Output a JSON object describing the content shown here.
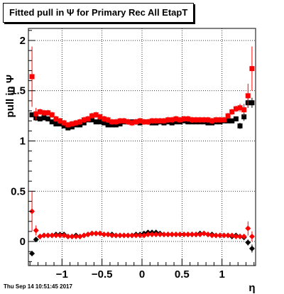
{
  "title": "Fitted pull in  Ψ  for Primary Rec All EtapT",
  "timestamp": "Thu Sep 14 10:51:45 2017",
  "chart_data": {
    "type": "scatter",
    "xlabel": "η",
    "ylabel": "pull in  Ψ",
    "xlim": [
      -1.42,
      1.42
    ],
    "ylim": [
      -0.24,
      2.12
    ],
    "x_ticks": [
      -1,
      -0.5,
      0,
      0.5,
      1
    ],
    "x_tick_labels": [
      "−1",
      "−0.5",
      "0",
      "0.5",
      "1"
    ],
    "y_ticks": [
      0,
      0.5,
      1,
      1.5,
      2
    ],
    "y_tick_labels": [
      "0",
      "0.5",
      "1",
      "1.5",
      "2"
    ],
    "grid": true,
    "x": [
      -1.375,
      -1.325,
      -1.275,
      -1.225,
      -1.175,
      -1.125,
      -1.075,
      -1.025,
      -0.975,
      -0.925,
      -0.875,
      -0.825,
      -0.775,
      -0.725,
      -0.675,
      -0.625,
      -0.575,
      -0.525,
      -0.475,
      -0.425,
      -0.375,
      -0.325,
      -0.275,
      -0.225,
      -0.175,
      -0.125,
      -0.075,
      -0.025,
      0.025,
      0.075,
      0.125,
      0.175,
      0.225,
      0.275,
      0.325,
      0.375,
      0.425,
      0.475,
      0.525,
      0.575,
      0.625,
      0.675,
      0.725,
      0.775,
      0.825,
      0.875,
      0.925,
      0.975,
      1.025,
      1.075,
      1.125,
      1.175,
      1.225,
      1.275,
      1.325,
      1.375
    ],
    "series": [
      {
        "color": "#000000",
        "marker": "square",
        "values": [
          1.26,
          1.23,
          1.22,
          1.23,
          1.22,
          1.19,
          1.17,
          1.17,
          1.15,
          1.13,
          1.14,
          1.16,
          1.16,
          1.18,
          1.21,
          1.21,
          1.19,
          1.19,
          1.18,
          1.16,
          1.16,
          1.16,
          1.17,
          1.19,
          1.19,
          1.19,
          1.19,
          1.18,
          1.19,
          1.19,
          1.18,
          1.18,
          1.19,
          1.18,
          1.19,
          1.18,
          1.19,
          1.19,
          1.2,
          1.19,
          1.19,
          1.19,
          1.19,
          1.19,
          1.18,
          1.18,
          1.19,
          1.19,
          1.2,
          1.2,
          1.2,
          1.22,
          1.15,
          1.24,
          1.38,
          1.38
        ],
        "errors": [
          0,
          0.03,
          0.02,
          0.02,
          0.02,
          0.02,
          0.02,
          0.02,
          0.02,
          0.02,
          0.02,
          0.02,
          0.02,
          0.02,
          0.02,
          0.02,
          0.02,
          0.02,
          0.02,
          0.02,
          0.02,
          0.02,
          0.02,
          0.02,
          0.02,
          0.02,
          0.02,
          0.02,
          0.02,
          0.02,
          0.02,
          0.02,
          0.02,
          0.02,
          0.02,
          0.02,
          0.02,
          0.02,
          0.02,
          0.02,
          0.02,
          0.02,
          0.02,
          0.02,
          0.02,
          0.02,
          0.02,
          0.02,
          0.02,
          0.02,
          0.02,
          0.02,
          0.03,
          0.04,
          0.05,
          0.05
        ]
      },
      {
        "color": "#ff0000",
        "marker": "square",
        "values": [
          1.64,
          1.27,
          1.29,
          1.28,
          1.28,
          1.26,
          1.22,
          1.2,
          1.18,
          1.16,
          1.17,
          1.18,
          1.19,
          1.21,
          1.22,
          1.25,
          1.26,
          1.24,
          1.22,
          1.21,
          1.19,
          1.19,
          1.2,
          1.2,
          1.19,
          1.18,
          1.19,
          1.2,
          1.19,
          1.19,
          1.2,
          1.2,
          1.2,
          1.2,
          1.21,
          1.21,
          1.22,
          1.21,
          1.22,
          1.22,
          1.21,
          1.21,
          1.21,
          1.21,
          1.21,
          1.2,
          1.21,
          1.21,
          1.21,
          1.25,
          1.29,
          1.32,
          1.33,
          1.31,
          1.45,
          1.72
        ],
        "errors": [
          0.3,
          0.06,
          0.03,
          0.03,
          0.03,
          0.03,
          0.03,
          0.03,
          0.03,
          0.03,
          0.03,
          0.03,
          0.03,
          0.03,
          0.03,
          0.03,
          0.03,
          0.03,
          0.03,
          0.03,
          0.03,
          0.03,
          0.03,
          0.03,
          0.03,
          0.03,
          0.03,
          0.03,
          0.03,
          0.03,
          0.03,
          0.03,
          0.03,
          0.03,
          0.03,
          0.03,
          0.03,
          0.03,
          0.03,
          0.03,
          0.03,
          0.03,
          0.03,
          0.03,
          0.03,
          0.03,
          0.03,
          0.03,
          0.03,
          0.03,
          0.03,
          0.03,
          0.04,
          0.06,
          0.12,
          0.22
        ]
      },
      {
        "color": "#000000",
        "marker": "diamond",
        "values": [
          -0.12,
          0.02,
          0.05,
          0.06,
          0.06,
          0.06,
          0.07,
          0.07,
          0.07,
          0.05,
          0.05,
          0.06,
          0.05,
          0.06,
          0.07,
          0.08,
          0.08,
          0.08,
          0.07,
          0.07,
          0.07,
          0.06,
          0.06,
          0.06,
          0.06,
          0.06,
          0.07,
          0.07,
          0.08,
          0.09,
          0.09,
          0.09,
          0.08,
          0.07,
          0.07,
          0.07,
          0.07,
          0.07,
          0.07,
          0.07,
          0.07,
          0.07,
          0.08,
          0.08,
          0.07,
          0.07,
          0.06,
          0.06,
          0.06,
          0.06,
          0.05,
          0.06,
          0.05,
          0.04,
          -0.01,
          -0.07
        ],
        "errors": [
          0.02,
          0.02,
          0.01,
          0.01,
          0.01,
          0.01,
          0.01,
          0.01,
          0.01,
          0.01,
          0.01,
          0.01,
          0.01,
          0.01,
          0.01,
          0.01,
          0.01,
          0.01,
          0.01,
          0.01,
          0.01,
          0.01,
          0.01,
          0.01,
          0.01,
          0.01,
          0.01,
          0.01,
          0.01,
          0.01,
          0.01,
          0.01,
          0.01,
          0.01,
          0.01,
          0.01,
          0.01,
          0.01,
          0.01,
          0.01,
          0.01,
          0.01,
          0.01,
          0.01,
          0.01,
          0.01,
          0.01,
          0.01,
          0.01,
          0.01,
          0.01,
          0.01,
          0.01,
          0.02,
          0.03,
          0.04
        ]
      },
      {
        "color": "#ff0000",
        "marker": "diamond",
        "values": [
          0.3,
          0.11,
          0.05,
          0.06,
          0.06,
          0.06,
          0.06,
          0.06,
          0.06,
          0.05,
          0.05,
          0.05,
          0.05,
          0.06,
          0.07,
          0.08,
          0.08,
          0.08,
          0.07,
          0.07,
          0.06,
          0.06,
          0.06,
          0.06,
          0.06,
          0.06,
          0.06,
          0.06,
          0.06,
          0.07,
          0.07,
          0.07,
          0.07,
          0.07,
          0.07,
          0.07,
          0.07,
          0.07,
          0.07,
          0.07,
          0.07,
          0.07,
          0.07,
          0.08,
          0.07,
          0.06,
          0.06,
          0.06,
          0.06,
          0.06,
          0.06,
          0.05,
          0.05,
          0.05,
          0.13,
          0.05
        ],
        "errors": [
          0.2,
          0.05,
          0.01,
          0.01,
          0.01,
          0.01,
          0.01,
          0.01,
          0.01,
          0.01,
          0.01,
          0.01,
          0.01,
          0.01,
          0.01,
          0.01,
          0.01,
          0.01,
          0.01,
          0.01,
          0.01,
          0.01,
          0.01,
          0.01,
          0.01,
          0.01,
          0.01,
          0.01,
          0.01,
          0.01,
          0.01,
          0.01,
          0.01,
          0.01,
          0.01,
          0.01,
          0.01,
          0.01,
          0.01,
          0.01,
          0.01,
          0.01,
          0.01,
          0.01,
          0.01,
          0.01,
          0.01,
          0.01,
          0.01,
          0.01,
          0.01,
          0.01,
          0.01,
          0.02,
          0.07,
          0.05
        ]
      }
    ]
  }
}
